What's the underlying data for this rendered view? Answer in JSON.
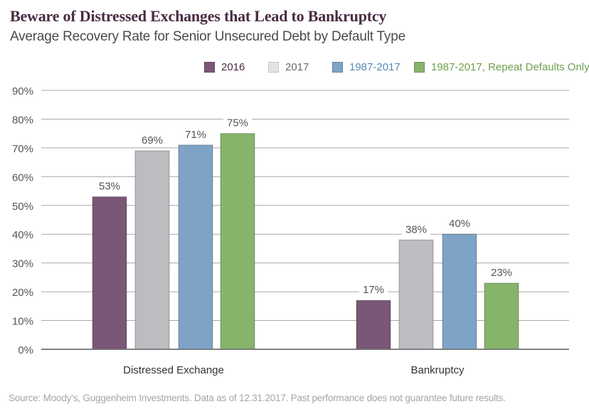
{
  "title": "Beware of Distressed Exchanges that Lead to Bankruptcy",
  "subtitle": "Average Recovery Rate for Senior Unsecured Debt by Default Type",
  "source": "Source: Moody’s, Guggenheim Investments. Data as of 12.31.2017.  Past performance does not guarantee future results.",
  "chart_data": {
    "type": "bar",
    "title": "Beware of Distressed Exchanges that Lead to Bankruptcy",
    "subtitle": "Average Recovery Rate for Senior Unsecured Debt by Default Type",
    "xlabel": "",
    "ylabel": "",
    "categories": [
      "Distressed Exchange",
      "Bankruptcy"
    ],
    "series": [
      {
        "name": "2016",
        "values": [
          53,
          17
        ],
        "labels": [
          "53%",
          "17%"
        ],
        "color": "#7a5677",
        "text_color": "#4a2c43"
      },
      {
        "name": "2017",
        "values": [
          69,
          38
        ],
        "labels": [
          "69%",
          "38%"
        ],
        "color": "#bcbdc0",
        "text_color": "#6b6b6b"
      },
      {
        "name": "1987-2017",
        "values": [
          71,
          40
        ],
        "labels": [
          "71%",
          "40%"
        ],
        "color": "#7ea3c6",
        "text_color": "#5b88b6"
      },
      {
        "name": "1987-2017, Repeat Defaults Only",
        "values": [
          75,
          23
        ],
        "labels": [
          "75%",
          "23%"
        ],
        "color": "#86b46b",
        "text_color": "#6e9f4f"
      }
    ],
    "ylim": [
      0,
      90
    ],
    "yticks": [
      0,
      10,
      20,
      30,
      40,
      50,
      60,
      70,
      80,
      90
    ],
    "ytick_labels": [
      "0%",
      "10%",
      "20%",
      "30%",
      "40%",
      "50%",
      "60%",
      "70%",
      "80%",
      "90%"
    ],
    "grid": true,
    "legend_position": "top-right"
  }
}
